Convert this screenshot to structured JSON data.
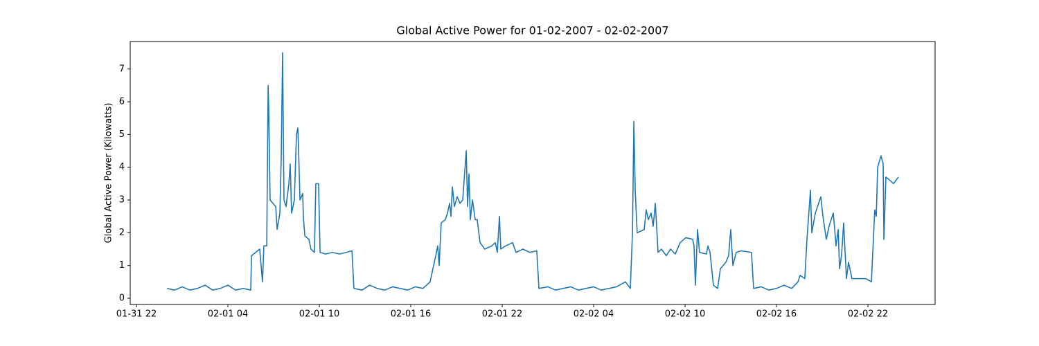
{
  "chart_data": {
    "type": "line",
    "title": "Global Active Power for 01-02-2007 - 02-02-2007",
    "y_label": "Global Active Power (Kilowatts)",
    "color": "#1f77b4",
    "x": [
      0,
      0.5,
      1,
      1.5,
      2,
      2.5,
      3,
      3.5,
      4,
      4.5,
      5,
      5.5,
      5.55,
      6.09,
      6.27,
      6.36,
      6.55,
      6.64,
      6.68,
      6.77,
      7.14,
      7.23,
      7.41,
      7.5,
      7.59,
      7.68,
      7.82,
      8.0,
      8.09,
      8.18,
      8.36,
      8.5,
      8.59,
      8.64,
      8.73,
      8.91,
      8.95,
      9.05,
      9.32,
      9.45,
      9.68,
      9.77,
      9.95,
      10.05,
      10.41,
      10.86,
      11.32,
      11.77,
      12.14,
      12.27,
      12.8,
      13.3,
      13.8,
      14.3,
      14.8,
      15.3,
      15.8,
      16.3,
      16.8,
      17.27,
      17.5,
      17.64,
      17.77,
      17.86,
      18.0,
      18.27,
      18.41,
      18.55,
      18.64,
      18.73,
      18.86,
      19.05,
      19.23,
      19.41,
      19.64,
      19.73,
      19.82,
      19.91,
      20.05,
      20.23,
      20.36,
      20.55,
      20.86,
      21.32,
      21.55,
      21.68,
      21.82,
      21.91,
      22.23,
      22.68,
      22.91,
      23.36,
      23.82,
      24.27,
      24.41,
      25,
      25.5,
      26,
      26.5,
      27,
      27.5,
      28,
      28.5,
      29,
      29.5,
      30.09,
      30.41,
      30.55,
      30.64,
      30.73,
      30.86,
      31.32,
      31.45,
      31.59,
      31.77,
      31.91,
      32.05,
      32.23,
      32.45,
      32.77,
      33.05,
      33.36,
      33.68,
      34.05,
      34.5,
      34.59,
      34.68,
      34.82,
      34.95,
      35.41,
      35.5,
      35.64,
      35.86,
      36.14,
      36.32,
      36.68,
      36.86,
      37.0,
      37.14,
      37.36,
      37.68,
      38.36,
      38.5,
      39,
      39.5,
      40,
      40.5,
      41,
      41.41,
      41.55,
      41.86,
      42.0,
      42.23,
      42.32,
      42.55,
      42.91,
      43.05,
      43.27,
      43.45,
      43.73,
      43.91,
      44.05,
      44.14,
      44.27,
      44.41,
      44.59,
      44.73,
      44.95,
      45.86,
      46.23,
      46.45,
      46.55,
      46.64,
      46.86,
      47.0,
      47.05,
      47.18,
      47.45,
      47.68,
      48.0
    ],
    "values": [
      0.3,
      0.25,
      0.35,
      0.25,
      0.3,
      0.4,
      0.25,
      0.3,
      0.4,
      0.25,
      0.3,
      0.25,
      1.3,
      1.5,
      0.5,
      1.6,
      1.6,
      6.5,
      5.8,
      3.0,
      2.8,
      2.1,
      2.6,
      4.3,
      7.5,
      3.0,
      2.8,
      3.5,
      4.1,
      2.6,
      3.0,
      5.0,
      5.2,
      4.5,
      3.0,
      3.2,
      2.5,
      1.9,
      1.8,
      1.5,
      1.4,
      3.5,
      3.5,
      1.4,
      1.35,
      1.4,
      1.35,
      1.4,
      1.45,
      0.3,
      0.25,
      0.4,
      0.3,
      0.25,
      0.35,
      0.3,
      0.25,
      0.35,
      0.3,
      0.5,
      1.0,
      1.3,
      1.6,
      1.0,
      2.3,
      2.4,
      2.6,
      2.9,
      2.5,
      3.4,
      2.8,
      3.1,
      2.9,
      3.0,
      4.5,
      2.8,
      3.8,
      2.4,
      3.0,
      2.4,
      2.4,
      1.7,
      1.5,
      1.6,
      1.7,
      1.4,
      2.5,
      1.5,
      1.6,
      1.7,
      1.4,
      1.5,
      1.4,
      1.45,
      0.3,
      0.35,
      0.25,
      0.3,
      0.35,
      0.25,
      0.3,
      0.35,
      0.25,
      0.3,
      0.35,
      0.5,
      0.3,
      2.0,
      5.4,
      3.3,
      2.0,
      2.1,
      2.7,
      2.4,
      2.6,
      2.2,
      2.9,
      1.4,
      1.5,
      1.3,
      1.5,
      1.35,
      1.7,
      1.85,
      1.8,
      1.6,
      0.4,
      2.1,
      1.4,
      1.35,
      1.6,
      1.4,
      0.4,
      0.3,
      0.9,
      1.1,
      1.3,
      2.1,
      1.0,
      1.4,
      1.45,
      1.4,
      0.3,
      0.35,
      0.25,
      0.3,
      0.4,
      0.3,
      0.5,
      0.7,
      0.6,
      1.8,
      3.3,
      2.0,
      2.6,
      3.1,
      2.5,
      1.8,
      2.2,
      2.6,
      1.6,
      2.1,
      0.9,
      1.3,
      2.3,
      0.6,
      1.1,
      0.6,
      0.6,
      0.5,
      2.7,
      2.5,
      4.0,
      4.35,
      4.1,
      1.8,
      3.7,
      3.6,
      3.5,
      3.7
    ],
    "xlim": [
      -2.41,
      50.41
    ],
    "xticks": [
      {
        "value": -2,
        "label": "01-31 22"
      },
      {
        "value": 4,
        "label": "02-01 04"
      },
      {
        "value": 10,
        "label": "02-01 10"
      },
      {
        "value": 16,
        "label": "02-01 16"
      },
      {
        "value": 22,
        "label": "02-01 22"
      },
      {
        "value": 28,
        "label": "02-02 04"
      },
      {
        "value": 34,
        "label": "02-02 10"
      },
      {
        "value": 40,
        "label": "02-02 16"
      },
      {
        "value": 46,
        "label": "02-02 22"
      }
    ],
    "ylim": [
      -0.19,
      7.84
    ],
    "yticks": [
      0,
      1,
      2,
      3,
      4,
      5,
      6,
      7
    ],
    "grid": false
  }
}
